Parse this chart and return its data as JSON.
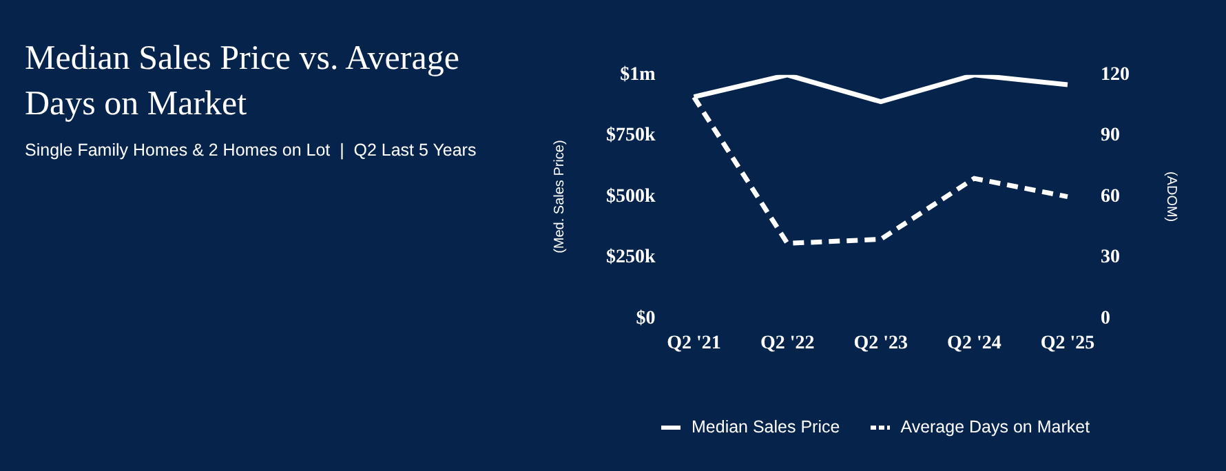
{
  "chart_data": {
    "type": "line",
    "title": "Median Sales Price vs. Average Days on Market",
    "subtitle": "Single Family Homes & 2 Homes on Lot  |  Q2 Last 5 Years",
    "categories": [
      "Q2 '21",
      "Q2 '22",
      "Q2 '23",
      "Q2 '24",
      "Q2 '25"
    ],
    "series": [
      {
        "name": "Median Sales Price",
        "color": "#ffffff",
        "line_style": "solid",
        "axis": "y",
        "values": [
          910000,
          1000000,
          890000,
          1000000,
          960000
        ]
      },
      {
        "name": "Average Days on Market",
        "color": "#ffffff",
        "line_style": "dashed",
        "axis": "y2",
        "values": [
          109,
          37,
          39,
          69,
          60
        ]
      }
    ],
    "ylabel": "(Med. Sales Price)",
    "y2label": "(ADOM)",
    "ylim": [
      0,
      1000000
    ],
    "yticks": [
      {
        "value": 0,
        "label": "$0"
      },
      {
        "value": 250000,
        "label": "$250k"
      },
      {
        "value": 500000,
        "label": "$500k"
      },
      {
        "value": 750000,
        "label": "$750k"
      },
      {
        "value": 1000000,
        "label": "$1m"
      }
    ],
    "y2lim": [
      0,
      120
    ],
    "y2ticks": [
      0,
      30,
      60,
      90,
      120
    ],
    "grid": false,
    "legend": "bottom",
    "marker": "none"
  }
}
